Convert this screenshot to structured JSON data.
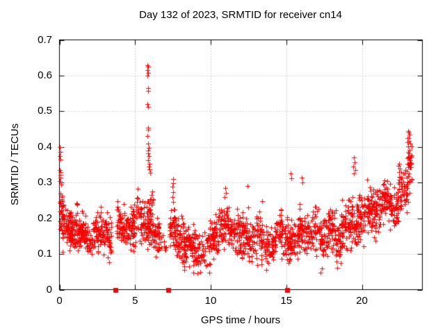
{
  "chart_data": {
    "type": "scatter",
    "title": "Day 132 of 2023, SRMTID for receiver cn14",
    "xlabel": "GPS time / hours",
    "ylabel": "SRMTID / TECUs",
    "xlim": [
      0,
      24
    ],
    "ylim": [
      0,
      0.7
    ],
    "xticks": [
      0,
      5,
      10,
      15,
      20
    ],
    "xtick_labels": [
      "0",
      "5",
      "10",
      "15",
      "20"
    ],
    "yticks": [
      0,
      0.1,
      0.2,
      0.3,
      0.4,
      0.5,
      0.6,
      0.7
    ],
    "ytick_labels": [
      "0",
      "0.1",
      "0.2",
      "0.3",
      "0.4",
      "0.5",
      "0.6",
      "0.7"
    ],
    "grid": {
      "show": true,
      "color": "#a8a8a8",
      "style": "dotted"
    },
    "frame_color": "#000000",
    "background": "#ffffff",
    "legend": "none",
    "marker": {
      "shape": "plus",
      "color": "#ff0000",
      "size": 7
    },
    "axis_markers": {
      "shape": "square",
      "color": "#ff0000",
      "y": 0,
      "x": [
        3.7,
        7.2,
        15.05
      ],
      "size": 7
    },
    "seed": 132,
    "cadence_hours": 0.008333,
    "spread_mult": 1.4,
    "wobble": [
      {
        "amp": 0.012,
        "freq": 5.3
      },
      {
        "amp": 0.009,
        "freq": 1.9
      }
    ],
    "segments": [
      {
        "h0": 0.02,
        "h1": 0.18,
        "n": 28,
        "base": 0.21,
        "amp": 0.05,
        "min": 0.11,
        "max": 0.31
      },
      {
        "h0": 0.18,
        "h1": 1.2,
        "n": 115,
        "base": 0.168,
        "amp": 0.038,
        "min": 0.085,
        "max": 0.3
      },
      {
        "h0": 1.2,
        "h1": 2.2,
        "n": 105,
        "base": 0.155,
        "amp": 0.034,
        "min": 0.07,
        "max": 0.27
      },
      {
        "h0": 2.2,
        "h1": 3.45,
        "n": 110,
        "base": 0.163,
        "amp": 0.038,
        "min": 0.075,
        "max": 0.3
      },
      {
        "h0": 3.78,
        "h1": 5.05,
        "n": 125,
        "base": 0.17,
        "amp": 0.04,
        "min": 0.085,
        "max": 0.3
      },
      {
        "h0": 5.05,
        "h1": 5.65,
        "n": 48,
        "base": 0.205,
        "amp": 0.042,
        "min": 0.1,
        "max": 0.325
      },
      {
        "h0": 5.65,
        "h1": 6.2,
        "n": 75,
        "base": 0.19,
        "amp": 0.05,
        "min": 0.09,
        "max": 0.35
      },
      {
        "h0": 6.2,
        "h1": 6.6,
        "n": 42,
        "base": 0.15,
        "amp": 0.04,
        "min": 0.08,
        "max": 0.26
      },
      {
        "h0": 6.6,
        "h1": 7.1,
        "n": 10,
        "base": 0.13,
        "amp": 0.03,
        "min": 0.07,
        "max": 0.2
      },
      {
        "h0": 7.28,
        "h1": 8.2,
        "n": 95,
        "base": 0.145,
        "amp": 0.04,
        "min": 0.06,
        "max": 0.27
      },
      {
        "h0": 8.2,
        "h1": 10.2,
        "n": 170,
        "base": 0.125,
        "amp": 0.038,
        "min": 0.045,
        "max": 0.225
      },
      {
        "h0": 10.2,
        "h1": 11.8,
        "n": 145,
        "base": 0.163,
        "amp": 0.042,
        "min": 0.07,
        "max": 0.29
      },
      {
        "h0": 11.8,
        "h1": 13.3,
        "n": 135,
        "base": 0.15,
        "amp": 0.042,
        "min": 0.06,
        "max": 0.285
      },
      {
        "h0": 13.3,
        "h1": 14.3,
        "n": 95,
        "base": 0.115,
        "amp": 0.035,
        "min": 0.05,
        "max": 0.21
      },
      {
        "h0": 14.3,
        "h1": 15.8,
        "n": 135,
        "base": 0.15,
        "amp": 0.042,
        "min": 0.07,
        "max": 0.3
      },
      {
        "h0": 15.8,
        "h1": 16.6,
        "n": 72,
        "base": 0.168,
        "amp": 0.042,
        "min": 0.08,
        "max": 0.315
      },
      {
        "h0": 16.6,
        "h1": 18.6,
        "n": 175,
        "base": 0.152,
        "amp": 0.045,
        "min": 0.045,
        "max": 0.285
      },
      {
        "h0": 18.6,
        "h1": 19.8,
        "n": 115,
        "base": 0.19,
        "amp": 0.048,
        "min": 0.09,
        "max": 0.35
      },
      {
        "h0": 19.8,
        "h1": 21.2,
        "n": 135,
        "base": 0.215,
        "amp": 0.05,
        "min": 0.105,
        "max": 0.335
      },
      {
        "h0": 21.2,
        "h1": 22.4,
        "n": 115,
        "base": 0.245,
        "amp": 0.045,
        "min": 0.13,
        "max": 0.35
      },
      {
        "h0": 22.4,
        "h1": 23.05,
        "n": 62,
        "base": 0.28,
        "amp": 0.05,
        "min": 0.16,
        "max": 0.4
      },
      {
        "h0": 23.0,
        "h1": 23.3,
        "n": 30,
        "base": 0.35,
        "amp": 0.05,
        "min": 0.25,
        "max": 0.445
      }
    ],
    "features": [
      [
        0.03,
        0.4
      ],
      [
        0.05,
        0.385
      ],
      [
        0.04,
        0.375
      ],
      [
        0.06,
        0.365
      ],
      [
        0.03,
        0.335
      ],
      [
        0.07,
        0.33
      ],
      [
        0.05,
        0.322
      ],
      [
        0.08,
        0.315
      ],
      [
        0.04,
        0.305
      ],
      [
        0.1,
        0.295
      ],
      [
        5.8,
        0.63
      ],
      [
        5.84,
        0.625
      ],
      [
        5.82,
        0.615
      ],
      [
        5.86,
        0.608
      ],
      [
        5.83,
        0.6
      ],
      [
        5.85,
        0.565
      ],
      [
        5.88,
        0.558
      ],
      [
        5.82,
        0.52
      ],
      [
        5.86,
        0.513
      ],
      [
        5.84,
        0.455
      ],
      [
        5.88,
        0.448
      ],
      [
        5.82,
        0.43
      ],
      [
        5.86,
        0.41
      ],
      [
        5.9,
        0.398
      ],
      [
        5.84,
        0.39
      ],
      [
        5.88,
        0.383
      ],
      [
        5.92,
        0.375
      ],
      [
        5.86,
        0.363
      ],
      [
        5.94,
        0.352
      ],
      [
        5.9,
        0.345
      ],
      [
        5.97,
        0.338
      ],
      [
        6.01,
        0.328
      ],
      [
        7.5,
        0.31
      ],
      [
        7.52,
        0.298
      ],
      [
        7.48,
        0.288
      ],
      [
        7.51,
        0.274
      ],
      [
        7.49,
        0.26
      ],
      [
        7.53,
        0.246
      ],
      [
        10.95,
        0.285
      ],
      [
        11.0,
        0.272
      ],
      [
        10.9,
        0.26
      ],
      [
        12.45,
        0.29
      ],
      [
        12.5,
        0.23
      ],
      [
        13.4,
        0.247
      ],
      [
        15.3,
        0.325
      ],
      [
        15.35,
        0.312
      ],
      [
        16.0,
        0.315
      ],
      [
        16.05,
        0.3
      ],
      [
        19.45,
        0.37
      ],
      [
        19.5,
        0.357
      ],
      [
        19.42,
        0.346
      ],
      [
        19.55,
        0.336
      ],
      [
        19.48,
        0.325
      ],
      [
        23.05,
        0.445
      ],
      [
        23.1,
        0.44
      ],
      [
        23.15,
        0.434
      ],
      [
        23.02,
        0.425
      ],
      [
        23.12,
        0.418
      ],
      [
        23.2,
        0.41
      ],
      [
        23.06,
        0.402
      ],
      [
        23.16,
        0.392
      ],
      [
        23.1,
        0.382
      ],
      [
        23.04,
        0.372
      ],
      [
        23.18,
        0.362
      ],
      [
        23.08,
        0.352
      ],
      [
        8.85,
        0.048
      ],
      [
        9.3,
        0.05
      ],
      [
        9.9,
        0.047
      ],
      [
        13.7,
        0.056
      ],
      [
        17.25,
        0.048
      ],
      [
        17.35,
        0.06
      ],
      [
        18.35,
        0.062
      ],
      [
        18.6,
        0.075
      ]
    ]
  }
}
